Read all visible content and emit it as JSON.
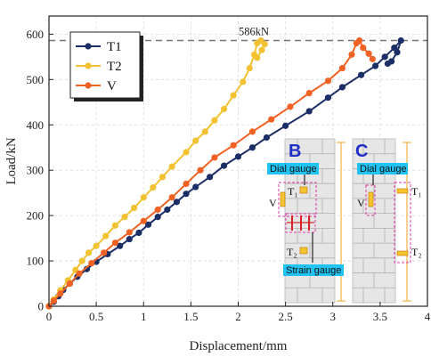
{
  "chart_data": {
    "type": "line",
    "xlabel": "Displacement/mm",
    "ylabel": "Load/kN",
    "xlim": [
      0,
      4
    ],
    "ylim": [
      0,
      640
    ],
    "xticks": [
      "0",
      "0.5",
      "1",
      "1.5",
      "2",
      "2.5",
      "3",
      "3.5",
      "4"
    ],
    "yticks": [
      "0",
      "100",
      "200",
      "300",
      "400",
      "500",
      "600"
    ],
    "grid": true,
    "legend_position": "top-left",
    "reference_line": {
      "y": 586,
      "label": "586kN"
    },
    "series": [
      {
        "name": "T1",
        "color": "#1b2f66",
        "points": [
          [
            0,
            0
          ],
          [
            0.05,
            10
          ],
          [
            0.1,
            22
          ],
          [
            0.15,
            36
          ],
          [
            0.22,
            50
          ],
          [
            0.3,
            65
          ],
          [
            0.4,
            82
          ],
          [
            0.5,
            98
          ],
          [
            0.62,
            115
          ],
          [
            0.75,
            133
          ],
          [
            0.85,
            148
          ],
          [
            0.95,
            162
          ],
          [
            1.05,
            180
          ],
          [
            1.15,
            197
          ],
          [
            1.25,
            213
          ],
          [
            1.35,
            230
          ],
          [
            1.45,
            248
          ],
          [
            1.55,
            263
          ],
          [
            1.7,
            285
          ],
          [
            1.85,
            310
          ],
          [
            2.0,
            330
          ],
          [
            2.15,
            350
          ],
          [
            2.3,
            372
          ],
          [
            2.5,
            398
          ],
          [
            2.75,
            430
          ],
          [
            2.95,
            460
          ],
          [
            3.1,
            483
          ],
          [
            3.3,
            510
          ],
          [
            3.45,
            530
          ],
          [
            3.55,
            550
          ],
          [
            3.65,
            570
          ],
          [
            3.72,
            586
          ],
          [
            3.68,
            560
          ],
          [
            3.62,
            540
          ],
          [
            3.58,
            535
          ]
        ]
      },
      {
        "name": "T2",
        "color": "#f2c232",
        "points": [
          [
            0,
            0
          ],
          [
            0.05,
            15
          ],
          [
            0.12,
            35
          ],
          [
            0.2,
            57
          ],
          [
            0.28,
            80
          ],
          [
            0.35,
            100
          ],
          [
            0.42,
            118
          ],
          [
            0.5,
            133
          ],
          [
            0.6,
            155
          ],
          [
            0.7,
            178
          ],
          [
            0.8,
            197
          ],
          [
            0.9,
            217
          ],
          [
            1.0,
            240
          ],
          [
            1.1,
            262
          ],
          [
            1.2,
            285
          ],
          [
            1.3,
            308
          ],
          [
            1.45,
            340
          ],
          [
            1.55,
            365
          ],
          [
            1.65,
            385
          ],
          [
            1.75,
            410
          ],
          [
            1.85,
            435
          ],
          [
            1.95,
            465
          ],
          [
            2.05,
            495
          ],
          [
            2.12,
            525
          ],
          [
            2.17,
            555
          ],
          [
            2.2,
            580
          ],
          [
            2.24,
            586
          ],
          [
            2.28,
            578
          ],
          [
            2.25,
            565
          ],
          [
            2.2,
            548
          ]
        ]
      },
      {
        "name": "V",
        "color": "#f06224",
        "points": [
          [
            0,
            0
          ],
          [
            0.05,
            12
          ],
          [
            0.12,
            28
          ],
          [
            0.22,
            50
          ],
          [
            0.32,
            72
          ],
          [
            0.45,
            95
          ],
          [
            0.58,
            118
          ],
          [
            0.7,
            140
          ],
          [
            0.85,
            163
          ],
          [
            1.0,
            188
          ],
          [
            1.15,
            213
          ],
          [
            1.3,
            240
          ],
          [
            1.45,
            270
          ],
          [
            1.6,
            300
          ],
          [
            1.75,
            328
          ],
          [
            1.95,
            355
          ],
          [
            2.15,
            385
          ],
          [
            2.35,
            412
          ],
          [
            2.55,
            440
          ],
          [
            2.75,
            470
          ],
          [
            2.95,
            497
          ],
          [
            3.1,
            525
          ],
          [
            3.2,
            555
          ],
          [
            3.25,
            580
          ],
          [
            3.28,
            586
          ],
          [
            3.32,
            570
          ],
          [
            3.38,
            557
          ],
          [
            3.42,
            545
          ]
        ]
      }
    ]
  },
  "inset": {
    "panel_b": {
      "letter": "B",
      "dial_gauge": "Dial gauge",
      "strain_gauge": "Strain gauge",
      "t1": "T₁",
      "t2": "T₂",
      "v": "V"
    },
    "panel_c": {
      "letter": "C",
      "dial_gauge": "Dial gauge",
      "t1": "T₁",
      "t2": "T₂",
      "v": "V"
    }
  }
}
